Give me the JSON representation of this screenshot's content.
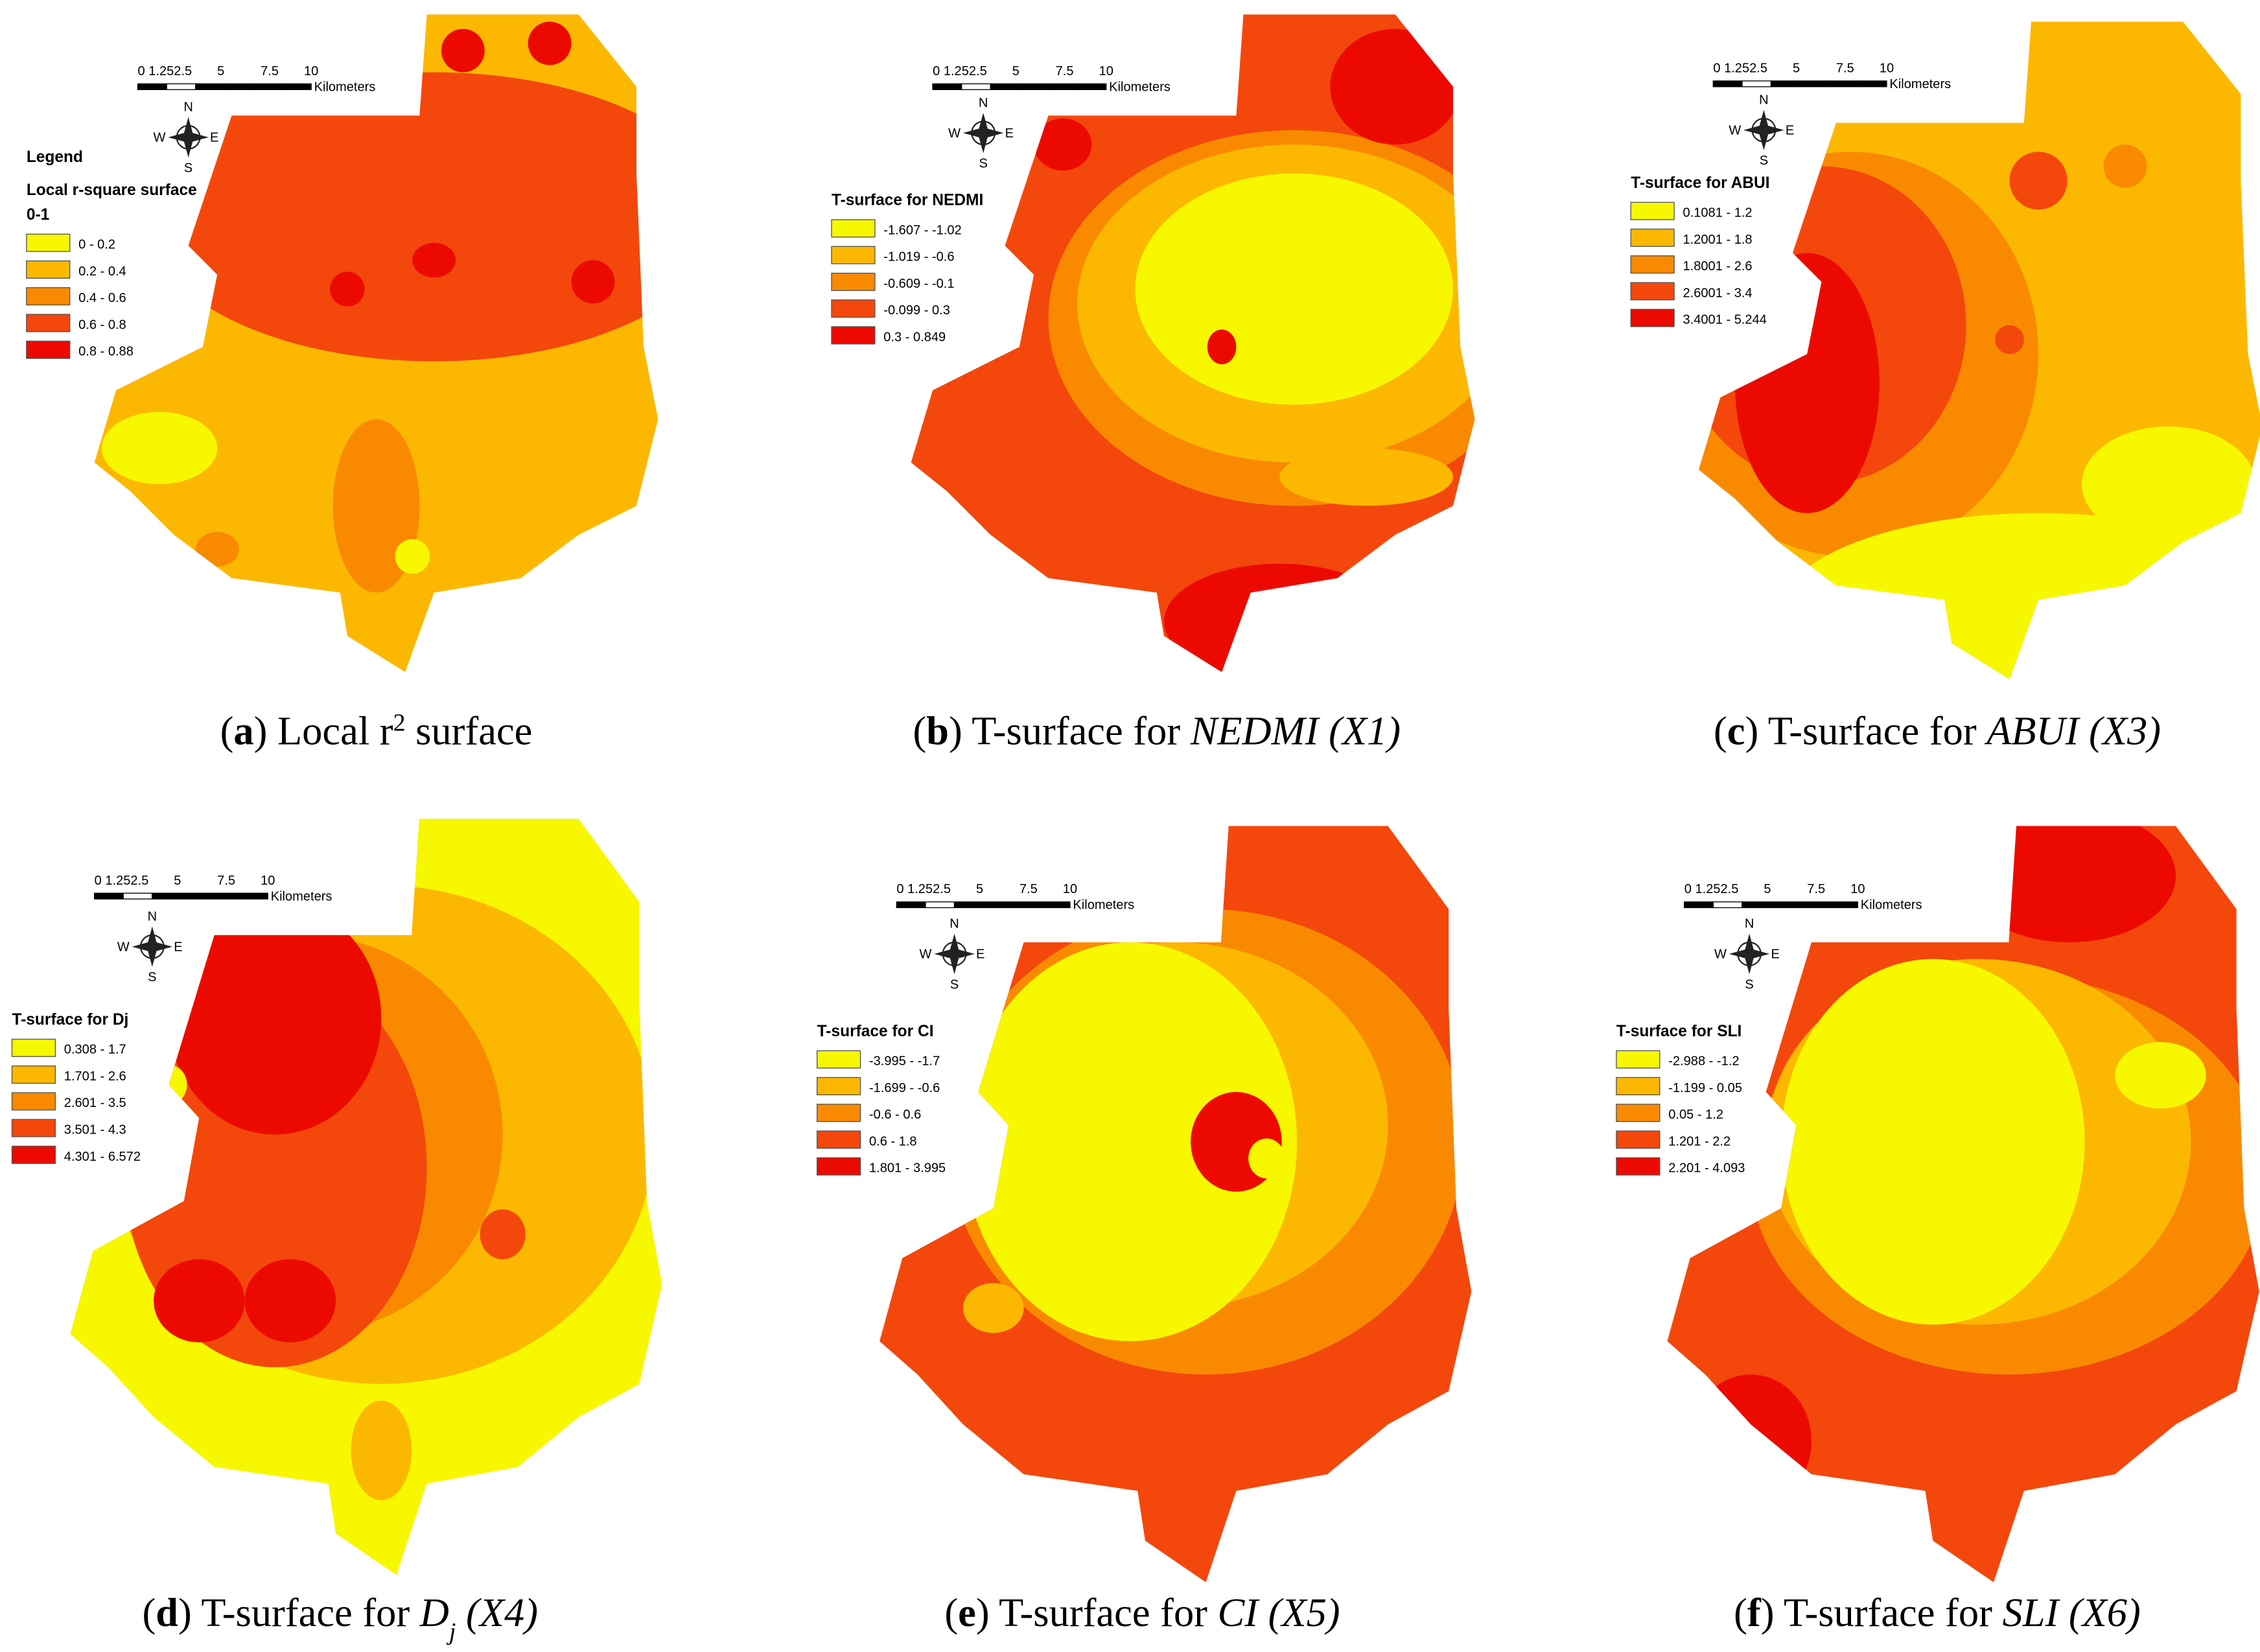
{
  "scale_bar": {
    "ticks": [
      "0 1.252.5",
      "5",
      "7.5",
      "10"
    ],
    "unit": "Kilometers"
  },
  "compass": {
    "n": "N",
    "e": "E",
    "s": "S",
    "w": "W"
  },
  "palette": [
    "#f7f700",
    "#fcb800",
    "#f98a00",
    "#f4470c",
    "#ec0a00"
  ],
  "panels": [
    {
      "legend": {
        "heading": "Legend",
        "title": "Local r-square surface",
        "subtitle": "0-1",
        "items": [
          "0 - 0.2",
          "0.2 - 0.4",
          "0.4 - 0.6",
          "0.6 - 0.8",
          "0.8 - 0.88"
        ]
      },
      "caption": [
        {
          "text": "("
        },
        {
          "text": "a",
          "bold": true
        },
        {
          "text": ") Local r"
        },
        {
          "text": "2",
          "sup": true
        },
        {
          "text": " surface"
        }
      ]
    },
    {
      "legend": {
        "title": "T-surface for NEDMI",
        "items": [
          "-1.607 - -1.02",
          "-1.019 - -0.6",
          "-0.609 - -0.1",
          "-0.099 - 0.3",
          "0.3 - 0.849"
        ]
      },
      "caption": [
        {
          "text": "("
        },
        {
          "text": "b",
          "bold": true
        },
        {
          "text": ") T-surface for "
        },
        {
          "text": "NEDMI (X1)",
          "italic": true
        }
      ]
    },
    {
      "legend": {
        "title": "T-surface for ABUI",
        "items": [
          "0.1081 - 1.2",
          "1.2001 - 1.8",
          "1.8001 - 2.6",
          "2.6001 - 3.4",
          "3.4001 - 5.244"
        ]
      },
      "caption": [
        {
          "text": "("
        },
        {
          "text": "c",
          "bold": true
        },
        {
          "text": ") T-surface for "
        },
        {
          "text": "ABUI (X3)",
          "italic": true
        }
      ]
    },
    {
      "legend": {
        "title": "T-surface for Dj",
        "items": [
          "0.308 - 1.7",
          "1.701 - 2.6",
          "2.601 - 3.5",
          "3.501 - 4.3",
          "4.301 - 6.572"
        ]
      },
      "caption": [
        {
          "text": "("
        },
        {
          "text": "d",
          "bold": true
        },
        {
          "text": ") T-surface for "
        },
        {
          "text": "D",
          "italic": true
        },
        {
          "text": "j",
          "italic": true,
          "sub": true
        },
        {
          "text": " (X4)",
          "italic": true
        }
      ]
    },
    {
      "legend": {
        "title": "T-surface for CI",
        "items": [
          "-3.995 - -1.7",
          "-1.699 - -0.6",
          "-0.6 - 0.6",
          "0.6 - 1.8",
          "1.801 - 3.995"
        ]
      },
      "caption": [
        {
          "text": "("
        },
        {
          "text": "e",
          "bold": true
        },
        {
          "text": ") T-surface for "
        },
        {
          "text": "CI (X5)",
          "italic": true
        }
      ]
    },
    {
      "legend": {
        "title": "T-surface for SLI",
        "items": [
          "-2.988 - -1.2",
          "-1.199 - 0.05",
          "0.05 - 1.2",
          "1.201 - 2.2",
          "2.201 - 4.093"
        ]
      },
      "caption": [
        {
          "text": "("
        },
        {
          "text": "f",
          "bold": true
        },
        {
          "text": ") T-surface for "
        },
        {
          "text": "SLI (X6)",
          "italic": true
        }
      ]
    }
  ]
}
